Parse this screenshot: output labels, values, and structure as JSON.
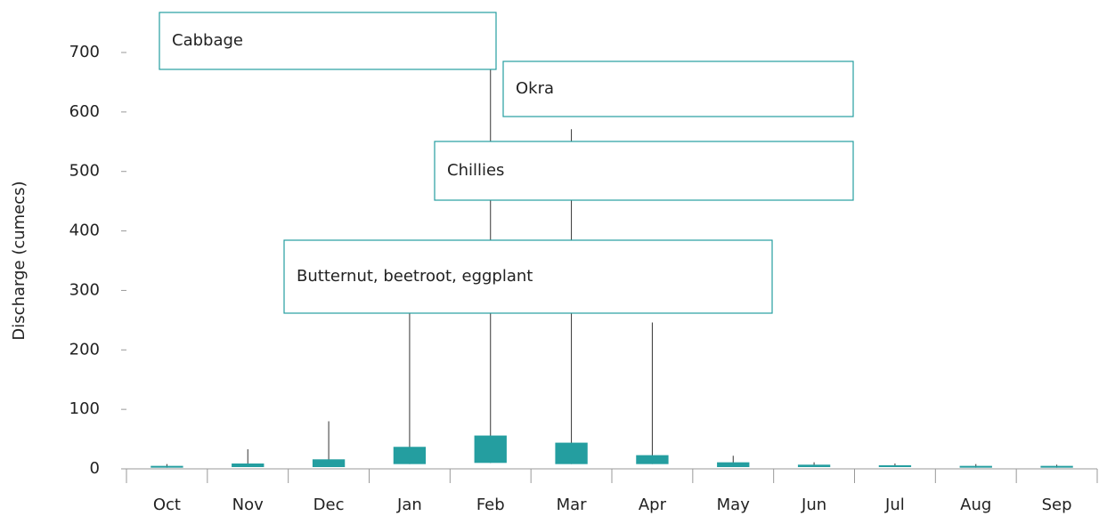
{
  "chart_data": {
    "type": "box",
    "y_label": "Discharge (cumecs)",
    "categories": [
      "Oct",
      "Nov",
      "Dec",
      "Jan",
      "Feb",
      "Mar",
      "Apr",
      "May",
      "Jun",
      "Jul",
      "Aug",
      "Sep"
    ],
    "low": [
      2,
      3,
      3,
      8,
      10,
      8,
      8,
      3,
      3,
      3,
      2,
      2
    ],
    "high": [
      5,
      9,
      16,
      37,
      56,
      44,
      23,
      11,
      7,
      6,
      5,
      5
    ],
    "max": [
      8,
      33,
      80,
      320,
      690,
      571,
      246,
      22,
      11,
      9,
      8,
      7
    ],
    "color": "#249ea0",
    "ylim": [
      0,
      700
    ],
    "yticks": [
      0,
      100,
      200,
      300,
      400,
      500,
      600,
      700
    ],
    "annotations": [
      "Cabbage",
      "Okra",
      "Chillies",
      "Butternut, beetroot, eggplant"
    ]
  }
}
